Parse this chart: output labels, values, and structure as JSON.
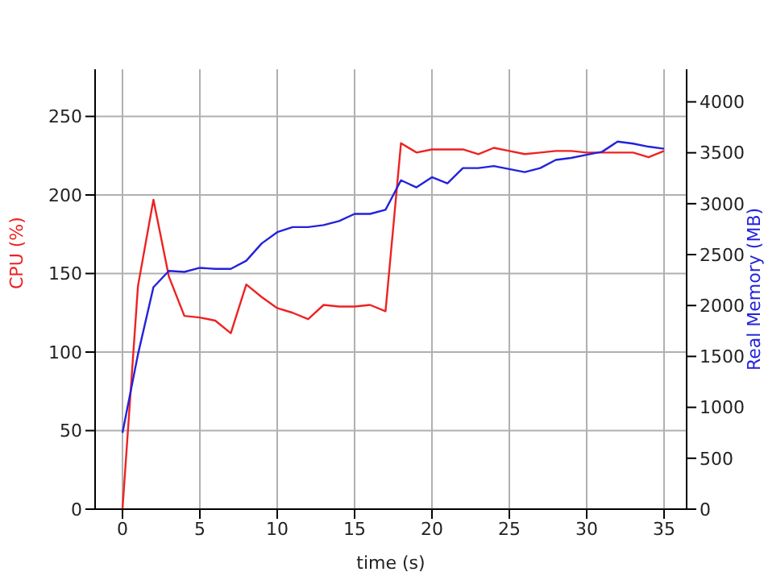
{
  "chart_data": {
    "type": "line",
    "xlabel": "time (s)",
    "ylabel": "CPU (%)",
    "y2label": "Real Memory (MB)",
    "x": [
      0,
      1,
      2,
      3,
      4,
      5,
      6,
      7,
      8,
      9,
      10,
      11,
      12,
      13,
      14,
      15,
      16,
      17,
      18,
      19,
      20,
      21,
      22,
      23,
      24,
      25,
      26,
      27,
      28,
      29,
      30,
      31,
      32,
      33,
      34,
      35
    ],
    "series": [
      {
        "color": "#ee2222",
        "values": [
          0,
          142,
          197,
          148,
          123,
          122,
          120,
          112,
          143,
          135,
          128,
          125,
          121,
          130,
          129,
          129,
          130,
          126,
          233,
          227,
          229,
          229,
          229,
          226,
          230,
          228,
          226,
          227,
          228,
          228,
          227,
          227,
          227,
          227,
          224,
          228
        ]
      },
      {
        "color": "#2222dd",
        "axis": "y2",
        "values": [
          750,
          1520,
          2180,
          2340,
          2330,
          2370,
          2360,
          2360,
          2440,
          2610,
          2720,
          2770,
          2770,
          2790,
          2830,
          2900,
          2900,
          2940,
          3230,
          3160,
          3260,
          3200,
          3350,
          3350,
          3370,
          3340,
          3310,
          3350,
          3430,
          3450,
          3480,
          3510,
          3610,
          3590,
          3560,
          3540
        ]
      }
    ],
    "xlim": [
      -1.77,
      36.46
    ],
    "xticks": [
      0,
      5,
      10,
      15,
      20,
      25,
      30,
      35
    ],
    "ylim": [
      0,
      280
    ],
    "yticks": [
      0,
      50,
      100,
      150,
      200,
      250
    ],
    "y2lim": [
      0,
      4320
    ],
    "y2ticks": [
      0,
      500,
      1000,
      1500,
      2000,
      2500,
      3000,
      3500,
      4000
    ],
    "grid": true,
    "marker": "none",
    "line_style": "solid"
  }
}
